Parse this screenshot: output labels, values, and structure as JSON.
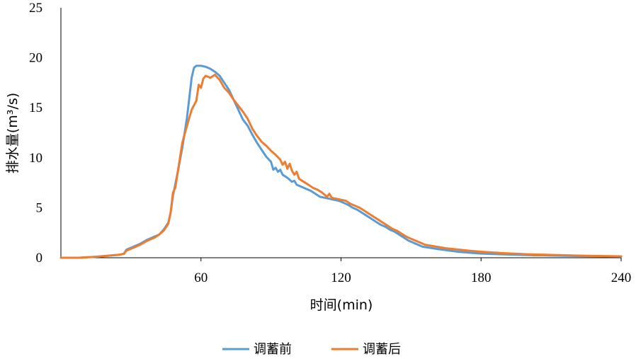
{
  "chart_data": {
    "type": "line",
    "xlabel": "时间(min)",
    "ylabel": "排水量(m³/s)",
    "xlim": [
      0,
      240
    ],
    "ylim": [
      0,
      25
    ],
    "x_ticks": [
      60,
      120,
      180,
      240
    ],
    "y_ticks": [
      0,
      5,
      10,
      15,
      20,
      25
    ],
    "grid": false,
    "legend": "bottom",
    "series": [
      {
        "name": "调蓄前",
        "color": "#5b9bd5",
        "points": [
          [
            0,
            0
          ],
          [
            8,
            0
          ],
          [
            15,
            0.1
          ],
          [
            20,
            0.2
          ],
          [
            25,
            0.3
          ],
          [
            27,
            0.4
          ],
          [
            28,
            0.8
          ],
          [
            31,
            1.1
          ],
          [
            34,
            1.4
          ],
          [
            37,
            1.8
          ],
          [
            40,
            2.1
          ],
          [
            42,
            2.3
          ],
          [
            44,
            2.8
          ],
          [
            46,
            3.5
          ],
          [
            47,
            4.5
          ],
          [
            48,
            6.2
          ],
          [
            50,
            8.5
          ],
          [
            52,
            11
          ],
          [
            54,
            14
          ],
          [
            55,
            16
          ],
          [
            56,
            18
          ],
          [
            57,
            19
          ],
          [
            58,
            19.2
          ],
          [
            60,
            19.2
          ],
          [
            62,
            19.1
          ],
          [
            64,
            18.9
          ],
          [
            66,
            18.6
          ],
          [
            68,
            18.2
          ],
          [
            70,
            17.5
          ],
          [
            72,
            16.8
          ],
          [
            74,
            15.8
          ],
          [
            76,
            14.8
          ],
          [
            78,
            13.8
          ],
          [
            80,
            13.2
          ],
          [
            82,
            12.3
          ],
          [
            84,
            11.5
          ],
          [
            86,
            10.8
          ],
          [
            88,
            10.1
          ],
          [
            90,
            9.6
          ],
          [
            91,
            8.8
          ],
          [
            92,
            9.0
          ],
          [
            93,
            8.6
          ],
          [
            94,
            8.8
          ],
          [
            95,
            8.3
          ],
          [
            97,
            8.0
          ],
          [
            99,
            7.6
          ],
          [
            100,
            7.7
          ],
          [
            101,
            7.3
          ],
          [
            103,
            7.1
          ],
          [
            105,
            6.9
          ],
          [
            107,
            6.7
          ],
          [
            109,
            6.4
          ],
          [
            111,
            6.1
          ],
          [
            113,
            6.0
          ],
          [
            115,
            5.9
          ],
          [
            117,
            5.8
          ],
          [
            119,
            5.7
          ],
          [
            121,
            5.5
          ],
          [
            123,
            5.3
          ],
          [
            125,
            5.0
          ],
          [
            127,
            4.8
          ],
          [
            129,
            4.5
          ],
          [
            131,
            4.2
          ],
          [
            133,
            3.9
          ],
          [
            135,
            3.6
          ],
          [
            137,
            3.3
          ],
          [
            139,
            3.1
          ],
          [
            141,
            2.8
          ],
          [
            143,
            2.6
          ],
          [
            145,
            2.3
          ],
          [
            147,
            2.0
          ],
          [
            149,
            1.7
          ],
          [
            151,
            1.5
          ],
          [
            153,
            1.3
          ],
          [
            155,
            1.1
          ],
          [
            158,
            1.0
          ],
          [
            162,
            0.85
          ],
          [
            166,
            0.72
          ],
          [
            170,
            0.6
          ],
          [
            175,
            0.5
          ],
          [
            180,
            0.42
          ],
          [
            190,
            0.33
          ],
          [
            200,
            0.27
          ],
          [
            210,
            0.22
          ],
          [
            220,
            0.18
          ],
          [
            230,
            0.15
          ],
          [
            240,
            0.12
          ]
        ]
      },
      {
        "name": "调蓄后",
        "color": "#ed7d31",
        "points": [
          [
            0,
            0
          ],
          [
            8,
            0
          ],
          [
            15,
            0.1
          ],
          [
            20,
            0.2
          ],
          [
            25,
            0.3
          ],
          [
            27,
            0.4
          ],
          [
            28,
            0.7
          ],
          [
            31,
            1.0
          ],
          [
            34,
            1.3
          ],
          [
            37,
            1.7
          ],
          [
            40,
            2.0
          ],
          [
            42,
            2.3
          ],
          [
            44,
            2.7
          ],
          [
            46,
            3.4
          ],
          [
            47,
            4.5
          ],
          [
            48,
            6.5
          ],
          [
            49,
            7.0
          ],
          [
            50,
            8.5
          ],
          [
            52,
            11.5
          ],
          [
            54,
            13.2
          ],
          [
            56,
            14.8
          ],
          [
            58,
            15.7
          ],
          [
            59,
            17.3
          ],
          [
            60,
            17.0
          ],
          [
            61,
            17.9
          ],
          [
            62,
            18.2
          ],
          [
            64,
            18.0
          ],
          [
            66,
            18.3
          ],
          [
            68,
            17.8
          ],
          [
            70,
            17.0
          ],
          [
            72,
            16.5
          ],
          [
            74,
            15.8
          ],
          [
            76,
            15.2
          ],
          [
            78,
            14.6
          ],
          [
            80,
            13.9
          ],
          [
            82,
            12.9
          ],
          [
            84,
            12.2
          ],
          [
            86,
            11.6
          ],
          [
            88,
            11.2
          ],
          [
            90,
            10.7
          ],
          [
            92,
            10.3
          ],
          [
            94,
            9.8
          ],
          [
            95,
            9.3
          ],
          [
            96,
            9.6
          ],
          [
            97,
            8.9
          ],
          [
            98,
            9.4
          ],
          [
            99,
            8.7
          ],
          [
            100,
            8.3
          ],
          [
            101,
            8.6
          ],
          [
            102,
            7.9
          ],
          [
            104,
            7.6
          ],
          [
            106,
            7.3
          ],
          [
            108,
            7.0
          ],
          [
            110,
            6.8
          ],
          [
            112,
            6.5
          ],
          [
            114,
            6.1
          ],
          [
            115,
            6.4
          ],
          [
            116,
            6.0
          ],
          [
            118,
            5.9
          ],
          [
            120,
            5.8
          ],
          [
            122,
            5.7
          ],
          [
            124,
            5.4
          ],
          [
            126,
            5.2
          ],
          [
            128,
            5.0
          ],
          [
            130,
            4.7
          ],
          [
            132,
            4.4
          ],
          [
            134,
            4.1
          ],
          [
            136,
            3.8
          ],
          [
            138,
            3.5
          ],
          [
            140,
            3.2
          ],
          [
            142,
            2.9
          ],
          [
            144,
            2.7
          ],
          [
            146,
            2.4
          ],
          [
            148,
            2.1
          ],
          [
            150,
            1.9
          ],
          [
            152,
            1.7
          ],
          [
            154,
            1.5
          ],
          [
            156,
            1.3
          ],
          [
            160,
            1.15
          ],
          [
            165,
            0.95
          ],
          [
            170,
            0.82
          ],
          [
            175,
            0.7
          ],
          [
            180,
            0.6
          ],
          [
            190,
            0.45
          ],
          [
            200,
            0.35
          ],
          [
            210,
            0.28
          ],
          [
            220,
            0.22
          ],
          [
            230,
            0.18
          ],
          [
            240,
            0.14
          ]
        ]
      }
    ]
  }
}
